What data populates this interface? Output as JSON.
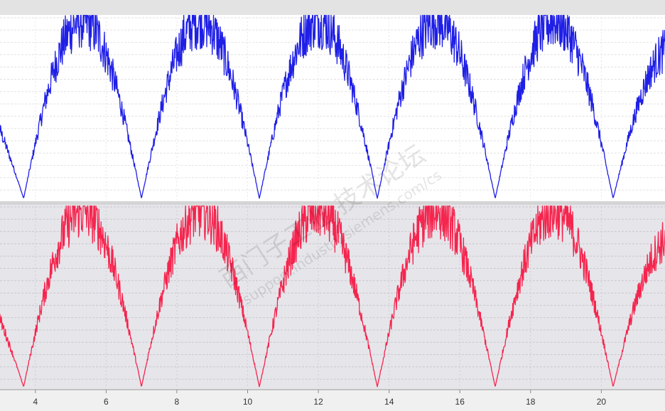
{
  "chart_data": [
    {
      "type": "line",
      "panel": "top",
      "series": [
        {
          "color": "#1f1fe6",
          "shape": "rectified sine with high-frequency noise",
          "x": [
            2.0,
            3.667,
            5.333,
            7.0,
            8.667,
            10.333,
            12.0,
            13.667,
            15.333,
            17.0,
            18.667,
            20.333,
            22.0
          ],
          "y": [
            0.65,
            0.0,
            1.0,
            0.0,
            1.0,
            0.0,
            1.0,
            0.0,
            1.0,
            0.0,
            1.0,
            0.0,
            0.85
          ]
        }
      ],
      "xlim": [
        3.0,
        21.8
      ],
      "ylim": [
        0,
        1.0
      ],
      "grid": true,
      "background": "#ffffff"
    },
    {
      "type": "line",
      "panel": "bottom",
      "series": [
        {
          "color": "#f5254e",
          "shape": "rectified sine with high-frequency noise",
          "x": [
            2.0,
            3.667,
            5.333,
            7.0,
            8.667,
            10.333,
            12.0,
            13.667,
            15.333,
            17.0,
            18.667,
            20.333,
            22.0
          ],
          "y": [
            0.65,
            0.0,
            1.0,
            0.0,
            1.0,
            0.0,
            1.0,
            0.0,
            1.0,
            0.0,
            1.0,
            0.0,
            0.85
          ]
        }
      ],
      "xlim": [
        3.0,
        21.8
      ],
      "ylim": [
        0,
        1.0
      ],
      "grid": true,
      "background": "#e6e5ea"
    }
  ],
  "x_axis": {
    "ticks": [
      "4",
      "6",
      "8",
      "10",
      "12",
      "14",
      "16",
      "18",
      "20"
    ],
    "tick_values": [
      4,
      6,
      8,
      10,
      12,
      14,
      16,
      18,
      20
    ]
  },
  "watermark": {
    "line1": "西门子工业 技术论坛",
    "line2": "support.industry.siemens.com/cs"
  }
}
